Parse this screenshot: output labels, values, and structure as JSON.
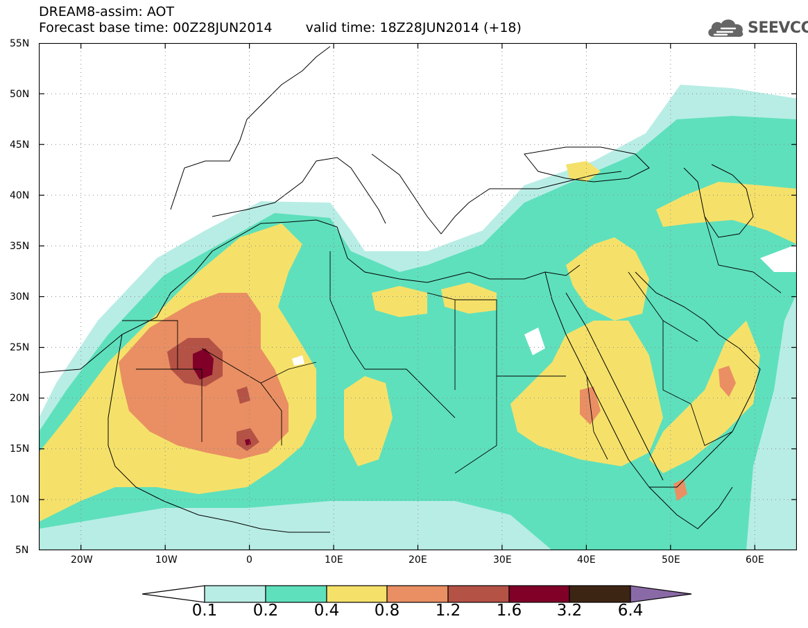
{
  "header": {
    "line1": "DREAM8-assim: AOT",
    "base_time": "Forecast base time: 00Z28JUN2014",
    "valid_time": "valid time: 18Z28JUN2014 (+18)"
  },
  "logo": {
    "icon": "cloud-icon",
    "text": "SEEVCCC"
  },
  "map": {
    "variable": "AOT",
    "lon_range": [
      -25,
      65
    ],
    "lat_range": [
      5,
      55
    ],
    "lat_ticks": [
      "55N",
      "50N",
      "45N",
      "40N",
      "35N",
      "30N",
      "25N",
      "20N",
      "15N",
      "10N",
      "5N"
    ],
    "lon_ticks": [
      "20W",
      "10W",
      "0",
      "10E",
      "20E",
      "30E",
      "40E",
      "50E",
      "60E"
    ]
  },
  "colorbar": {
    "levels": [
      "0.1",
      "0.2",
      "0.4",
      "0.8",
      "1.2",
      "1.6",
      "3.2",
      "6.4"
    ],
    "colors": [
      "#b8ede5",
      "#5ee0bc",
      "#f5e16a",
      "#e98f63",
      "#b55246",
      "#800028",
      "#3d2514",
      "#8a6aa6"
    ],
    "over_color": "#8a6aa6",
    "under_color": "#ffffff"
  }
}
